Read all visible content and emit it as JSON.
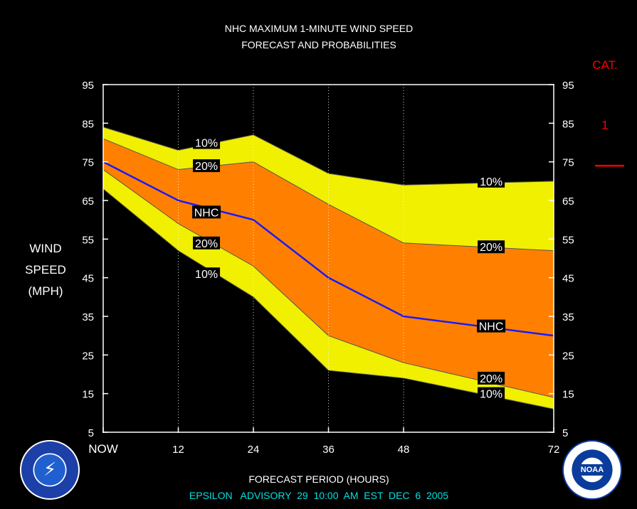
{
  "chart_data": {
    "type": "area",
    "title": "NHC MAXIMUM 1-MINUTE WIND SPEED",
    "subtitle": "FORECAST AND PROBABILITIES",
    "xlabel": "FORECAST PERIOD (HOURS)",
    "ylabel": [
      "WIND",
      "SPEED",
      "(MPH)"
    ],
    "xlim": [
      0,
      72
    ],
    "ylim": [
      5,
      95
    ],
    "x_ticks": [
      {
        "value": 0,
        "label": "NOW"
      },
      {
        "value": 12,
        "label": "12"
      },
      {
        "value": 24,
        "label": "24"
      },
      {
        "value": 36,
        "label": "36"
      },
      {
        "value": 48,
        "label": "48"
      },
      {
        "value": 72,
        "label": "72"
      }
    ],
    "y_ticks": [
      95,
      85,
      75,
      65,
      55,
      45,
      35,
      25,
      15,
      5
    ],
    "y_ticks_right": [
      95,
      85,
      75,
      65,
      55,
      45,
      35,
      25,
      15,
      5
    ],
    "vertical_grid_hours": [
      12,
      24,
      36,
      48
    ],
    "x": [
      0,
      12,
      24,
      36,
      48,
      72
    ],
    "series": [
      {
        "name": "10%",
        "role": "upper10",
        "values": [
          84,
          78,
          82,
          72,
          69,
          70
        ]
      },
      {
        "name": "20%",
        "role": "upper20",
        "values": [
          81,
          73,
          75,
          64,
          54,
          52
        ]
      },
      {
        "name": "NHC",
        "role": "nhc",
        "values": [
          75,
          65,
          60,
          45,
          35,
          30
        ]
      },
      {
        "name": "20%",
        "role": "lower20",
        "values": [
          73,
          59,
          48,
          30,
          23,
          14
        ]
      },
      {
        "name": "10%",
        "role": "lower10",
        "values": [
          68,
          52,
          40,
          21,
          19,
          11
        ]
      }
    ],
    "point_labels": [
      {
        "text": "10%",
        "x": 16.5,
        "y": 80
      },
      {
        "text": "20%",
        "x": 16.5,
        "y": 74
      },
      {
        "text": "NHC",
        "x": 16.5,
        "y": 62
      },
      {
        "text": "20%",
        "x": 16.5,
        "y": 54
      },
      {
        "text": "10%",
        "x": 16.5,
        "y": 46
      },
      {
        "text": "10%",
        "x": 62,
        "y": 70
      },
      {
        "text": "20%",
        "x": 62,
        "y": 53
      },
      {
        "text": "NHC",
        "x": 62,
        "y": 32.5
      },
      {
        "text": "20%",
        "x": 62,
        "y": 19
      },
      {
        "text": "10%",
        "x": 62,
        "y": 15
      }
    ],
    "category_scale": {
      "title": "CAT.",
      "levels": [
        {
          "label": "1",
          "threshold_mph": 74
        }
      ]
    },
    "colors": {
      "outer_band": "#f0f000",
      "inner_band": "#ff8000",
      "nhc_line": "#1a1aff",
      "category": "#ff0000",
      "footer": "#00e0e0"
    },
    "footer": "EPSILON   ADVISORY  29  10:00  AM  EST  DEC  6  2005"
  }
}
